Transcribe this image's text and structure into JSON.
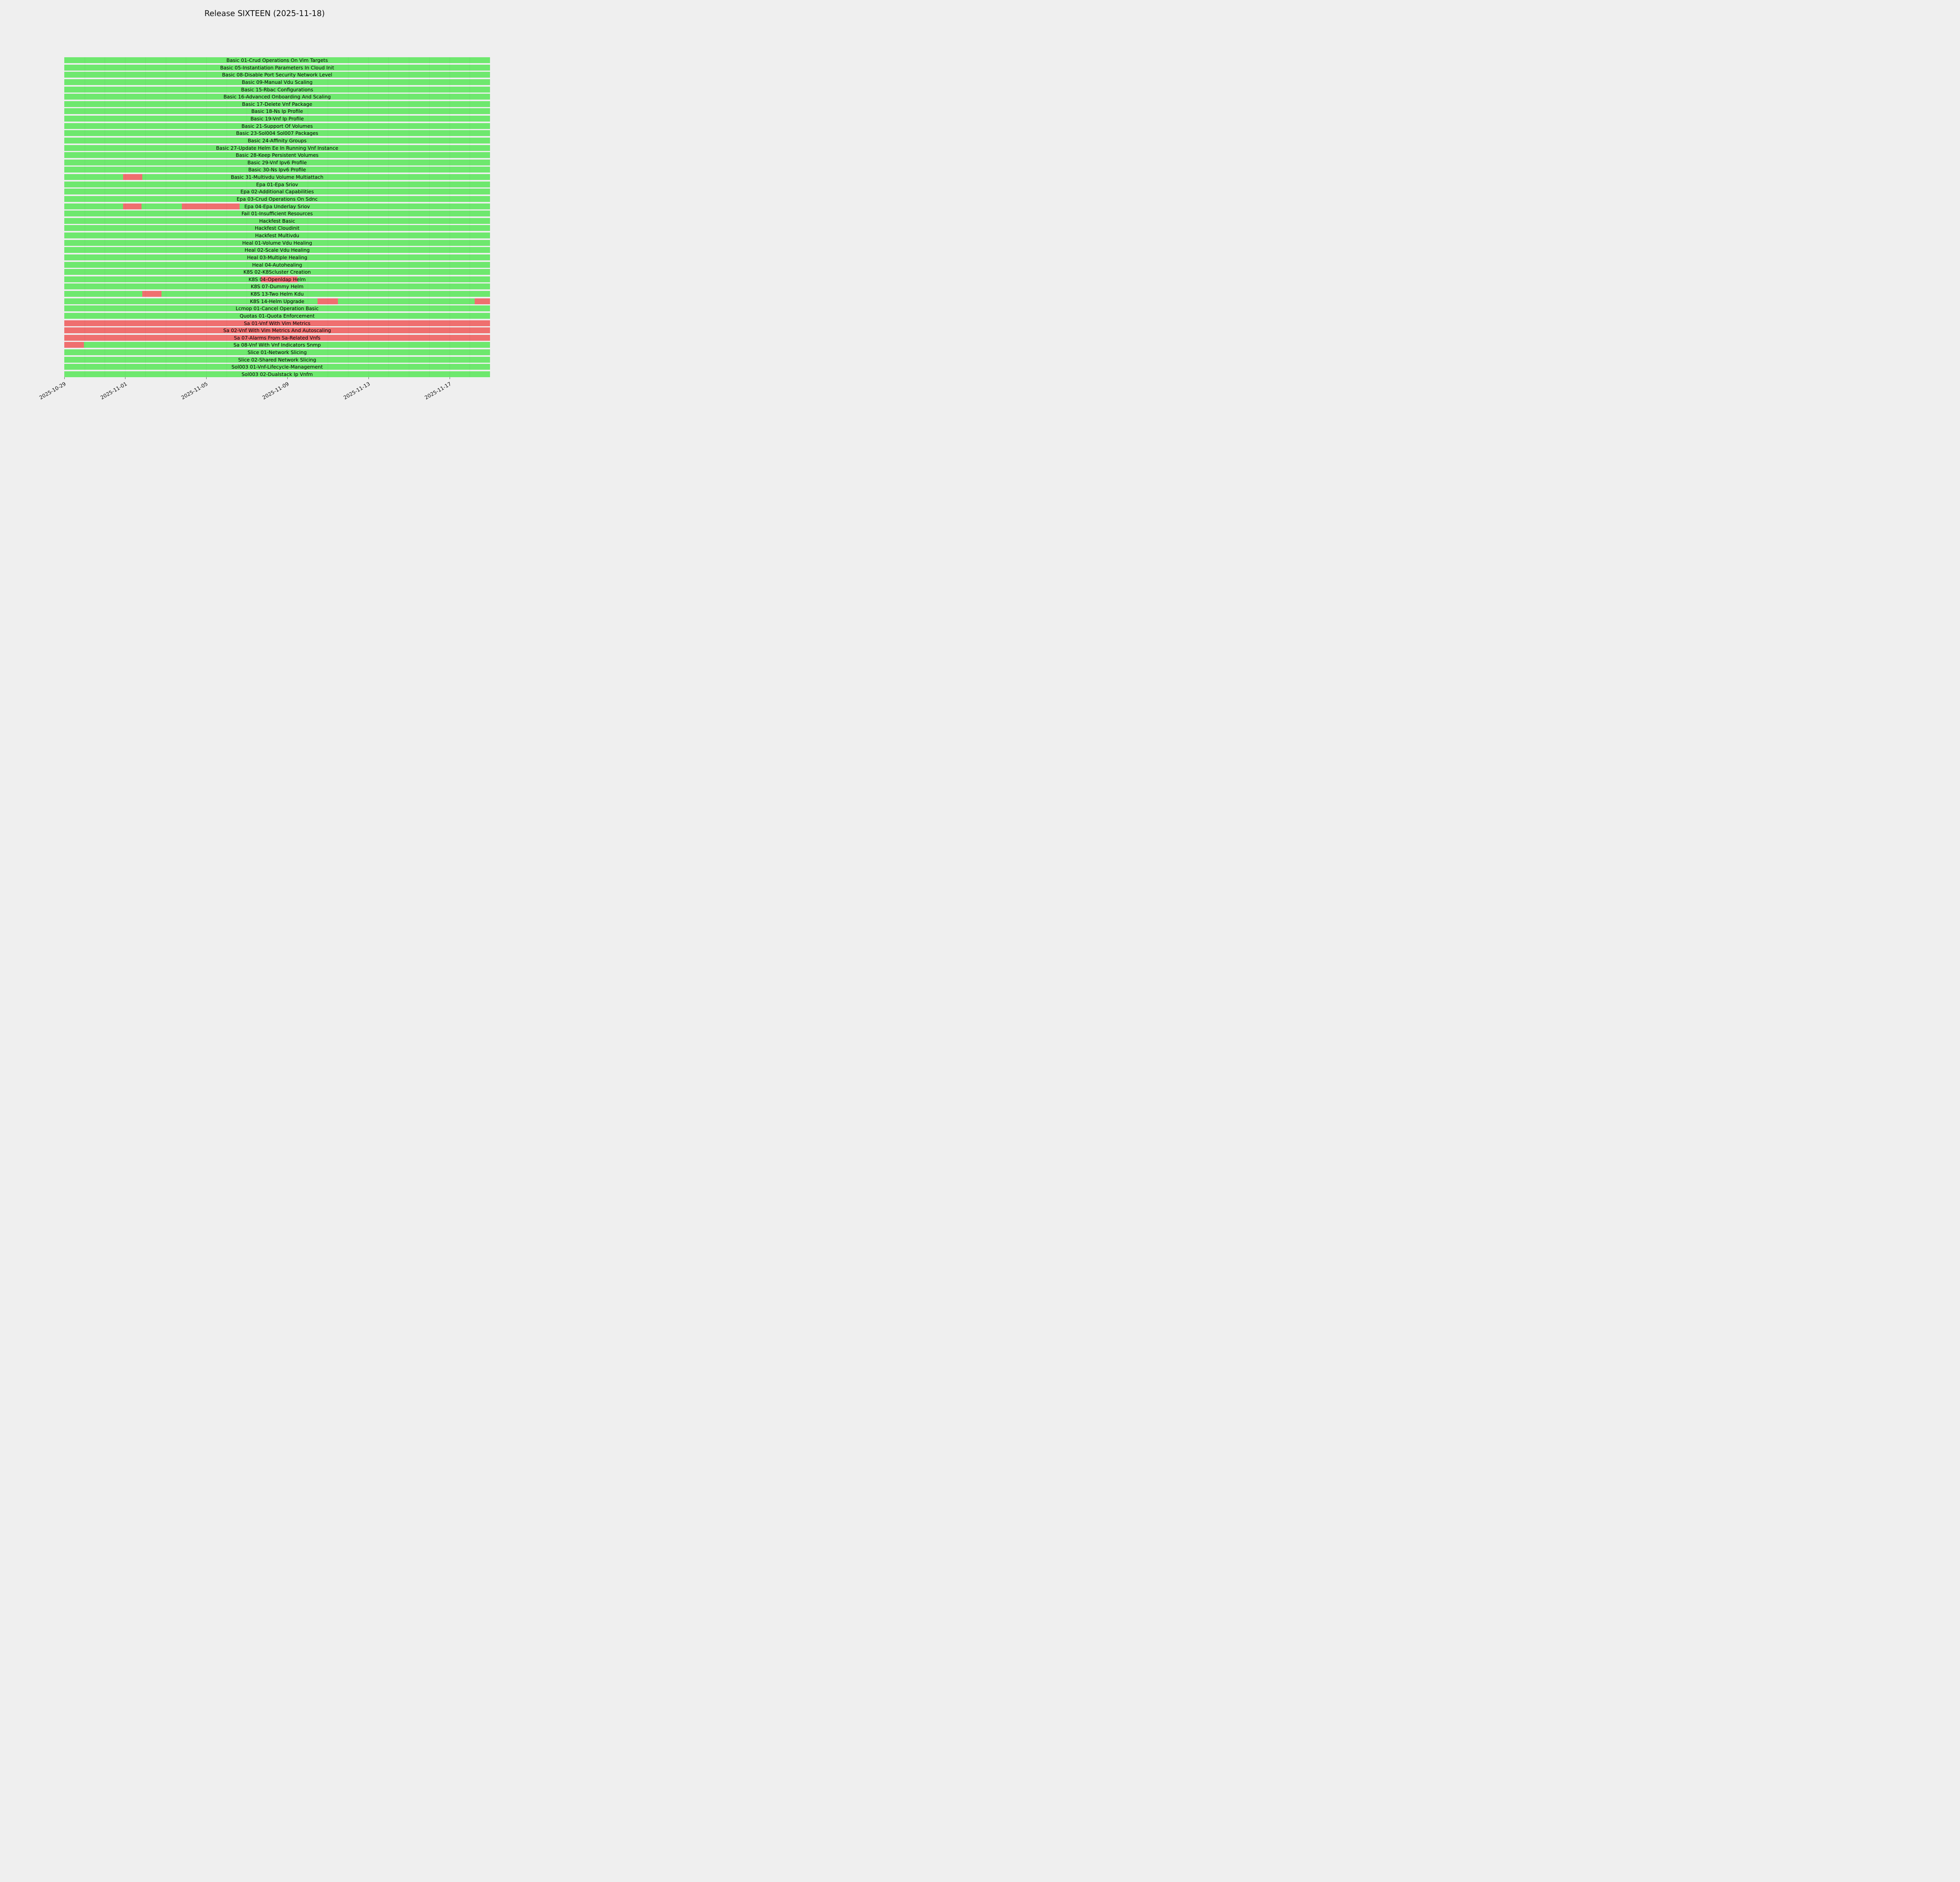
{
  "title": "Release SIXTEEN (2025-11-18)",
  "chart_data": {
    "type": "gantt",
    "title": "Release SIXTEEN (2025-11-18)",
    "x_start": "2025-10-29",
    "x_end": "2025-11-19",
    "total_days": 21,
    "legend": "green = passing period, red = failing period",
    "colors": {
      "pass": "#6ee86e",
      "fail": "#ef6f6f",
      "background": "#efefef",
      "text": "#000000"
    },
    "x_ticks": [
      {
        "label": "2025-10-29",
        "day": 0
      },
      {
        "label": "2025-11-01",
        "day": 3
      },
      {
        "label": "2025-11-05",
        "day": 7
      },
      {
        "label": "2025-11-09",
        "day": 11
      },
      {
        "label": "2025-11-13",
        "day": 15
      },
      {
        "label": "2025-11-17",
        "day": 19
      }
    ],
    "rows": [
      {
        "label": "Basic 01-Crud Operations On Vim Targets",
        "fail_segments": []
      },
      {
        "label": "Basic 05-Instantiation Parameters In Cloud Init",
        "fail_segments": []
      },
      {
        "label": "Basic 08-Disable Port Security Network Level",
        "fail_segments": []
      },
      {
        "label": "Basic 09-Manual Vdu Scaling",
        "fail_segments": []
      },
      {
        "label": "Basic 15-Rbac Configurations",
        "fail_segments": []
      },
      {
        "label": "Basic 16-Advanced Onboarding And Scaling",
        "fail_segments": []
      },
      {
        "label": "Basic 17-Delete Vnf Package",
        "fail_segments": []
      },
      {
        "label": "Basic 18-Ns Ip Profile",
        "fail_segments": []
      },
      {
        "label": "Basic 19-Vnf Ip Profile",
        "fail_segments": []
      },
      {
        "label": "Basic 21-Support Of Volumes",
        "fail_segments": []
      },
      {
        "label": "Basic 23-Sol004 Sol007 Packages",
        "fail_segments": []
      },
      {
        "label": "Basic 24-Affinity Groups",
        "fail_segments": []
      },
      {
        "label": "Basic 27-Update Helm Ee In Running Vnf Instance",
        "fail_segments": []
      },
      {
        "label": "Basic 28-Keep Persistent Volumes",
        "fail_segments": []
      },
      {
        "label": "Basic 29-Vnf Ipv6 Profile",
        "fail_segments": []
      },
      {
        "label": "Basic 30-Ns Ipv6 Profile",
        "fail_segments": []
      },
      {
        "label": "Basic 31-Multivdu Volume Multiattach",
        "fail_segments": [
          [
            2.9,
            3.85
          ]
        ]
      },
      {
        "label": "Epa 01-Epa Sriov",
        "fail_segments": []
      },
      {
        "label": "Epa 02-Additional Capabilities",
        "fail_segments": []
      },
      {
        "label": "Epa 03-Crud Operations On Sdnc",
        "fail_segments": []
      },
      {
        "label": "Epa 04-Epa Underlay Sriov",
        "fail_segments": [
          [
            2.9,
            3.8
          ],
          [
            5.8,
            8.65
          ]
        ]
      },
      {
        "label": "Fail 01-Insufficient Resources",
        "fail_segments": []
      },
      {
        "label": "Hackfest Basic",
        "fail_segments": []
      },
      {
        "label": "Hackfest Cloudinit",
        "fail_segments": []
      },
      {
        "label": "Hackfest Multivdu",
        "fail_segments": []
      },
      {
        "label": "Heal 01-Volume Vdu Healing",
        "fail_segments": []
      },
      {
        "label": "Heal 02-Scale Vdu Healing",
        "fail_segments": []
      },
      {
        "label": "Heal 03-Multiple Healing",
        "fail_segments": []
      },
      {
        "label": "Heal 04-Autohealing",
        "fail_segments": []
      },
      {
        "label": "K8S 02-K8Scluster Creation",
        "fail_segments": []
      },
      {
        "label": "K8S 04-Openldap Helm",
        "fail_segments": [
          [
            9.7,
            11.5
          ]
        ]
      },
      {
        "label": "K8S 07-Dummy Helm",
        "fail_segments": []
      },
      {
        "label": "K8S 13-Two Helm Kdu",
        "fail_segments": [
          [
            3.85,
            4.8
          ]
        ]
      },
      {
        "label": "K8S 14-Helm Upgrade",
        "fail_segments": [
          [
            12.5,
            13.5
          ],
          [
            20.25,
            21
          ]
        ]
      },
      {
        "label": "Lcmop 01-Cancel Operation Basic",
        "fail_segments": []
      },
      {
        "label": "Quotas 01-Quota Enforcement",
        "fail_segments": []
      },
      {
        "label": "Sa 01-Vnf With Vim Metrics",
        "fail_segments": [
          [
            0,
            21
          ]
        ]
      },
      {
        "label": "Sa 02-Vnf With Vim Metrics And Autoscaling",
        "fail_segments": [
          [
            0,
            21
          ]
        ]
      },
      {
        "label": "Sa 07-Alarms From Sa-Related Vnfs",
        "fail_segments": [
          [
            0,
            21
          ]
        ]
      },
      {
        "label": "Sa 08-Vnf With Vnf Indicators Snmp",
        "fail_segments": [
          [
            0,
            0.97
          ]
        ]
      },
      {
        "label": "Slice 01-Network Slicing",
        "fail_segments": []
      },
      {
        "label": "Slice 02-Shared Network Slicing",
        "fail_segments": []
      },
      {
        "label": "Sol003 01-Vnf-Lifecycle-Management",
        "fail_segments": []
      },
      {
        "label": "Sol003 02-Dualstack Ip Vnfm",
        "fail_segments": []
      }
    ]
  }
}
